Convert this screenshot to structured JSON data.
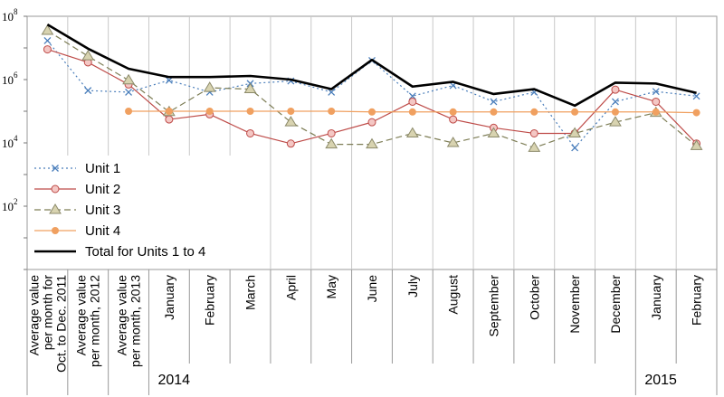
{
  "chart_data": {
    "type": "line",
    "yscale": "log",
    "ylim": [
      1,
      100000000
    ],
    "yticks": [
      {
        "base": "10",
        "exp": "2",
        "value": 100
      },
      {
        "base": "10",
        "exp": "4",
        "value": 10000
      },
      {
        "base": "10",
        "exp": "6",
        "value": 1000000
      },
      {
        "base": "10",
        "exp": "8",
        "value": 100000000
      }
    ],
    "categories": [
      [
        "Average value",
        "per month for",
        "Oct. to Dec. 2011"
      ],
      [
        "Average value",
        "per month, 2012"
      ],
      [
        "Average value",
        "per month, 2013"
      ],
      [
        "January"
      ],
      [
        "February"
      ],
      [
        "March"
      ],
      [
        "April"
      ],
      [
        "May"
      ],
      [
        "June"
      ],
      [
        "July"
      ],
      [
        "August"
      ],
      [
        "September"
      ],
      [
        "October"
      ],
      [
        "November"
      ],
      [
        "December"
      ],
      [
        "January"
      ],
      [
        "February"
      ]
    ],
    "year_labels": [
      {
        "text": "2014",
        "start": 3,
        "end": 14
      },
      {
        "text": "2015",
        "start": 15,
        "end": 16
      }
    ],
    "grid": true,
    "legend_position": "left",
    "series": [
      {
        "name": "Unit 1",
        "color": "#4a7ebb",
        "dash": "2,3",
        "marker": "x",
        "values": [
          17000000,
          450000,
          400000,
          950000,
          400000,
          750000,
          900000,
          400000,
          4000000,
          300000,
          650000,
          200000,
          400000,
          7000,
          200000,
          420000,
          300000
        ]
      },
      {
        "name": "Unit 2",
        "color": "#be4b48",
        "dash": "",
        "marker": "circle",
        "values": [
          9000000,
          3500000,
          700000,
          55000,
          80000,
          20000,
          9500,
          20000,
          45000,
          200000,
          55000,
          30000,
          20000,
          20000,
          480000,
          200000,
          9500
        ]
      },
      {
        "name": "Unit 3",
        "color": "#7d7d55",
        "dash": "7,4",
        "marker": "triangle",
        "values": [
          35000000,
          5500000,
          950000,
          95000,
          550000,
          500000,
          45000,
          9000,
          9000,
          20000,
          10000,
          20000,
          7000,
          20000,
          45000,
          90000,
          8000
        ]
      },
      {
        "name": "Unit 4",
        "color": "#f0a060",
        "dash": "",
        "marker": "dot",
        "start": 2,
        "values": [
          null,
          null,
          100000,
          100000,
          100000,
          100000,
          100000,
          100000,
          95000,
          95000,
          95000,
          95000,
          95000,
          95000,
          95000,
          95000,
          90000
        ]
      },
      {
        "name": "Total for Units 1 to 4",
        "color": "#000000",
        "dash": "",
        "marker": "none",
        "values": [
          55000000,
          9500000,
          2200000,
          1200000,
          1200000,
          1300000,
          1000000,
          500000,
          4200000,
          600000,
          850000,
          350000,
          500000,
          150000,
          800000,
          750000,
          380000
        ]
      }
    ]
  }
}
